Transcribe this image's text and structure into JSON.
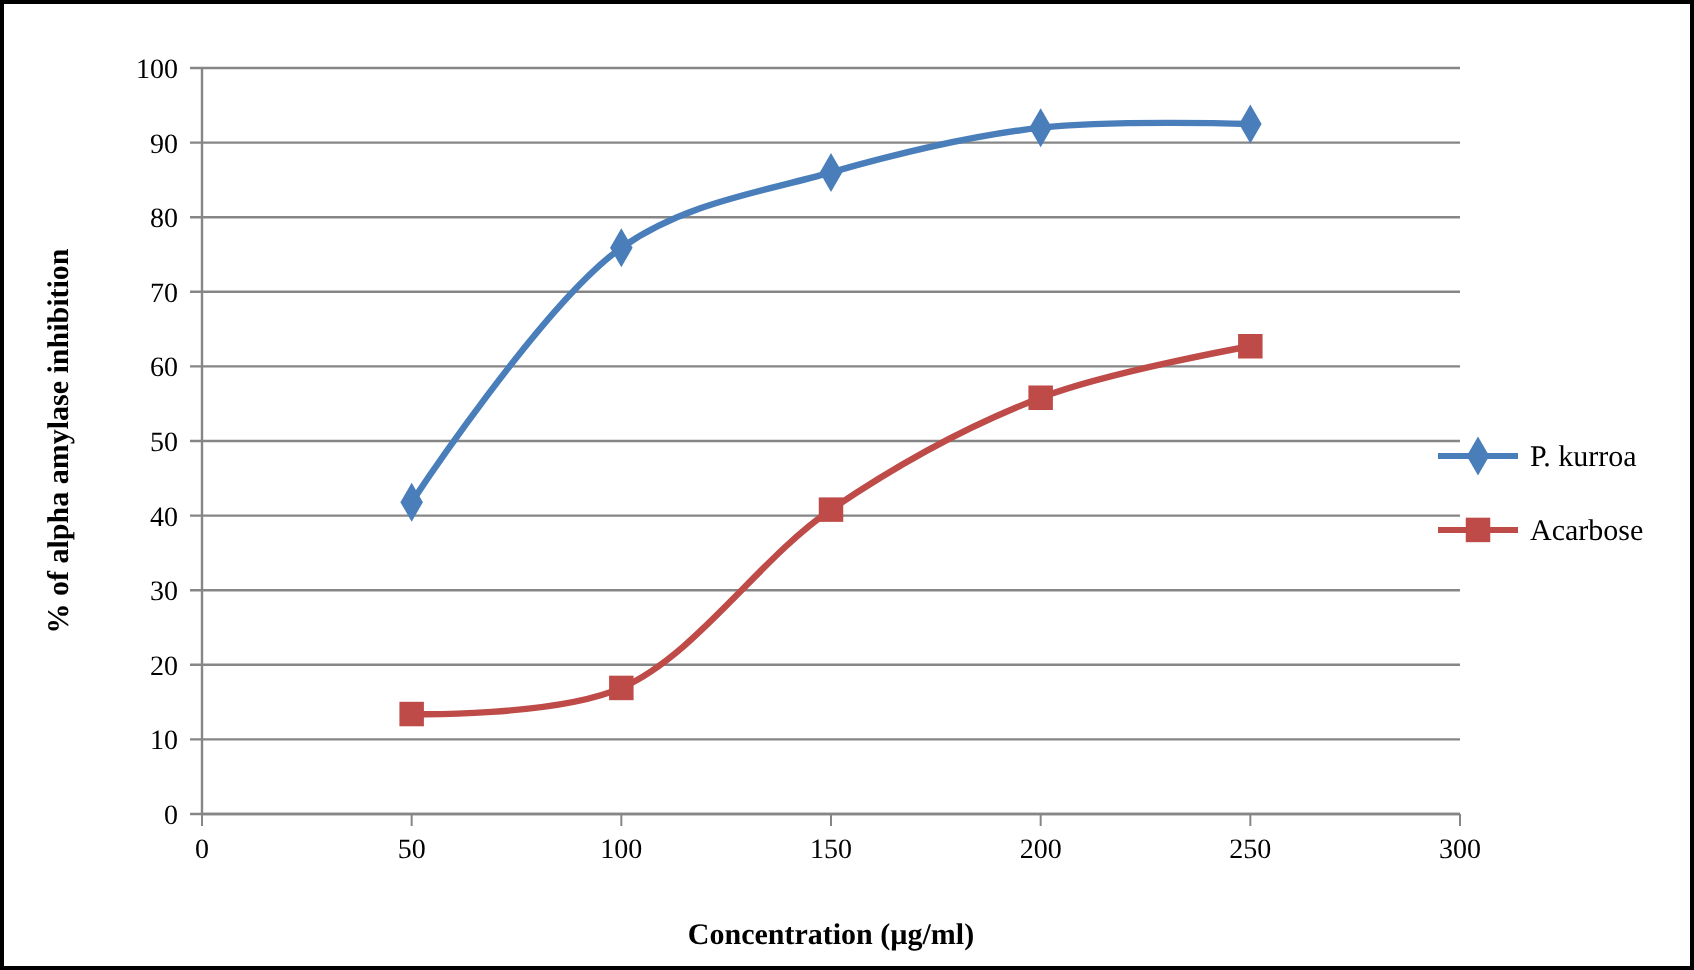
{
  "chart_data": {
    "type": "line",
    "xlabel": "Concentration (µg/ml)",
    "ylabel": "% of alpha amylase inhibition",
    "xlim": [
      0,
      300
    ],
    "xticks": [
      0,
      50,
      100,
      150,
      200,
      250,
      300
    ],
    "ylim": [
      0,
      100
    ],
    "yticks": [
      0,
      10,
      20,
      30,
      40,
      50,
      60,
      70,
      80,
      90,
      100
    ],
    "grid": "y",
    "legend": "right",
    "series": [
      {
        "name": "P. kurroa",
        "color": "#4a7ebb",
        "marker": "diamond",
        "x": [
          50,
          100,
          150,
          200,
          250
        ],
        "values": [
          41.8,
          75.9,
          86,
          92,
          92.5
        ]
      },
      {
        "name": "Acarbose",
        "color": "#be4b48",
        "marker": "square",
        "x": [
          50,
          100,
          150,
          200,
          250
        ],
        "values": [
          13.4,
          16.9,
          40.8,
          55.8,
          62.7
        ]
      }
    ]
  }
}
